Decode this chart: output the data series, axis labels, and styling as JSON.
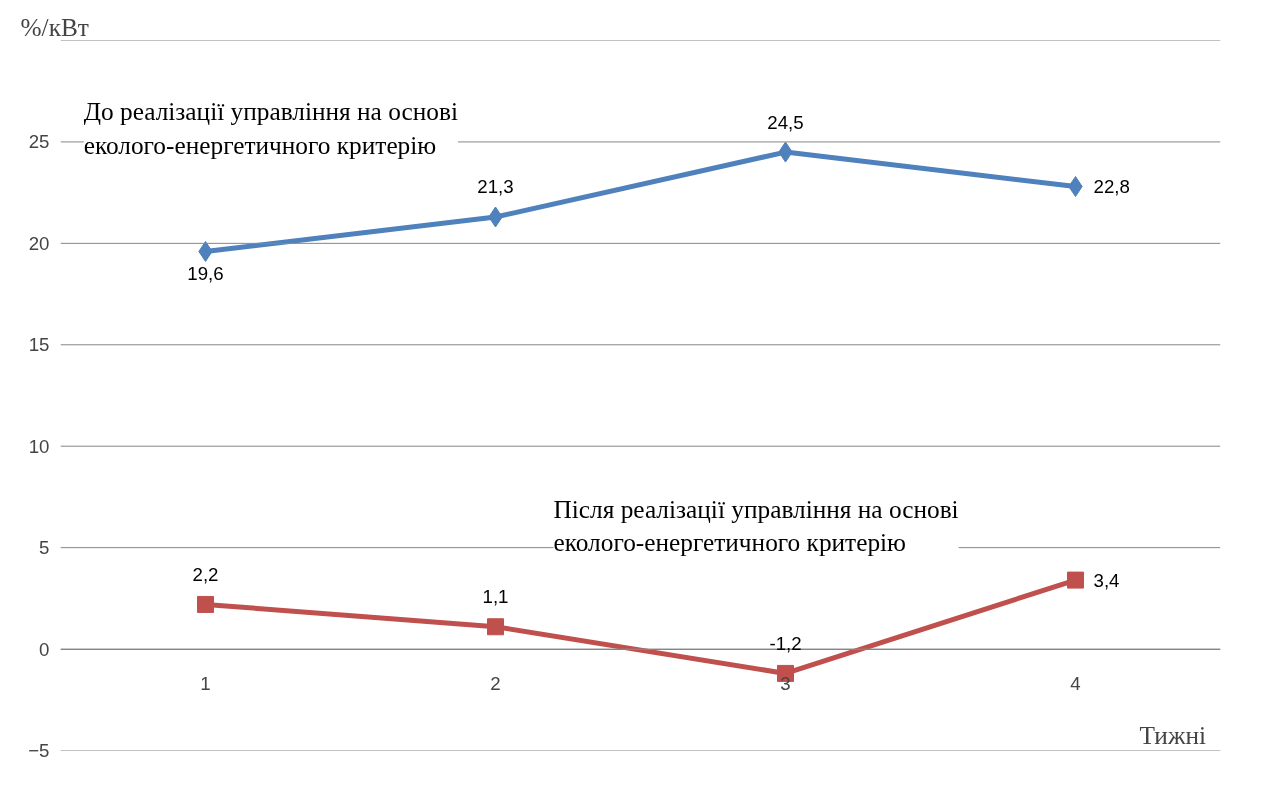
{
  "chart_data": {
    "type": "line",
    "xlabel": "Тижні",
    "ylabel": "%/кВт",
    "categories": [
      "1",
      "2",
      "3",
      "4"
    ],
    "series": [
      {
        "name": "До реалізації управління на основі еколого-енергетичного критерію",
        "color": "#4f81bd",
        "marker": "diamond",
        "values": [
          19.6,
          21.3,
          24.5,
          22.8
        ],
        "value_labels": [
          "19,6",
          "21,3",
          "24,5",
          "22,8"
        ]
      },
      {
        "name": "Після реалізації управління на основі еколого-енергетичного критерію",
        "color": "#c0504d",
        "marker": "square",
        "values": [
          2.2,
          1.1,
          -1.2,
          3.4
        ],
        "value_labels": [
          "2,2",
          "1,1",
          "-1,2",
          "3,4"
        ]
      }
    ],
    "ylim": [
      -5,
      30
    ],
    "yticks": [
      -5,
      0,
      5,
      10,
      15,
      20,
      25,
      {
        "value": 30,
        "label": null
      }
    ],
    "grid": "y",
    "line_style": "solid"
  }
}
